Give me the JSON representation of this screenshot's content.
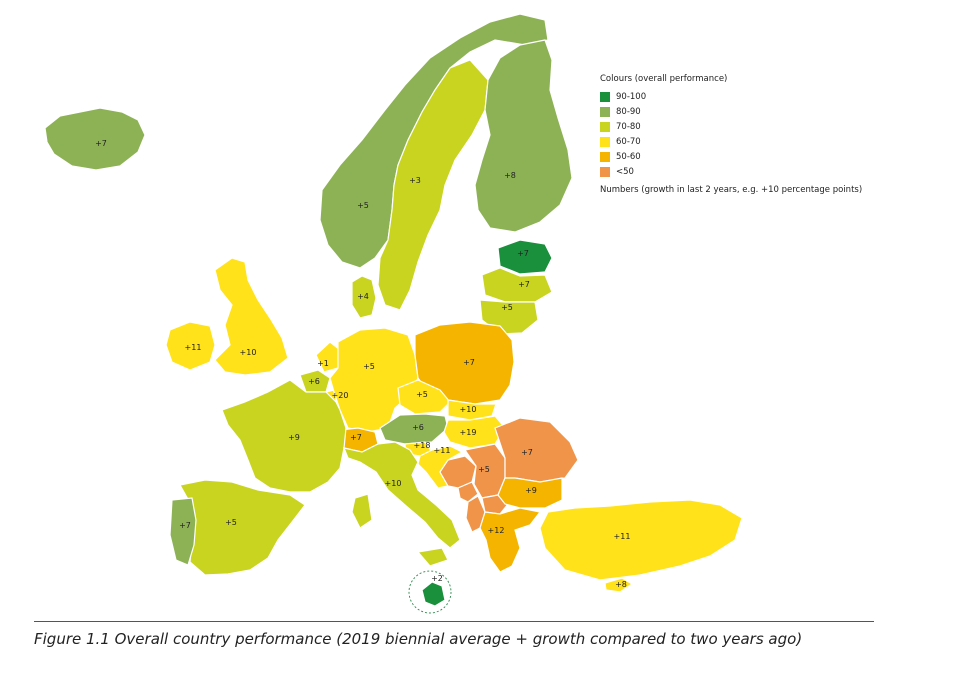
{
  "legend": {
    "title": "Colours (overall performance)",
    "items": [
      {
        "label": "90-100",
        "color": "#1a8f3c"
      },
      {
        "label": "80-90",
        "color": "#8db255"
      },
      {
        "label": "70-80",
        "color": "#c9d420"
      },
      {
        "label": "60-70",
        "color": "#ffe21a"
      },
      {
        "label": "50-60",
        "color": "#f4b400"
      },
      {
        "label": "<50",
        "color": "#f0944a"
      }
    ],
    "note": "Numbers (growth in last 2 years, e.g. +10 percentage points)"
  },
  "countries": [
    {
      "id": "iceland",
      "band": "80-90",
      "growth": "+7"
    },
    {
      "id": "norway",
      "band": "80-90",
      "growth": "+5"
    },
    {
      "id": "sweden",
      "band": "70-80",
      "growth": "+3"
    },
    {
      "id": "finland",
      "band": "80-90",
      "growth": "+8"
    },
    {
      "id": "estonia",
      "band": "90-100",
      "growth": "+7"
    },
    {
      "id": "latvia",
      "band": "70-80",
      "growth": "+7"
    },
    {
      "id": "lithuania",
      "band": "70-80",
      "growth": "+5"
    },
    {
      "id": "denmark",
      "band": "70-80",
      "growth": "+4"
    },
    {
      "id": "ireland",
      "band": "60-70",
      "growth": "+11"
    },
    {
      "id": "uk",
      "band": "60-70",
      "growth": "+10"
    },
    {
      "id": "netherlands",
      "band": "60-70",
      "growth": "+1"
    },
    {
      "id": "belgium",
      "band": "70-80",
      "growth": "+6"
    },
    {
      "id": "luxembourg",
      "band": "60-70",
      "growth": "+20"
    },
    {
      "id": "germany",
      "band": "60-70",
      "growth": "+5"
    },
    {
      "id": "poland",
      "band": "50-60",
      "growth": "+7"
    },
    {
      "id": "czechia",
      "band": "60-70",
      "growth": "+5"
    },
    {
      "id": "slovakia",
      "band": "60-70",
      "growth": "+10"
    },
    {
      "id": "hungary",
      "band": "60-70",
      "growth": "+19"
    },
    {
      "id": "austria",
      "band": "80-90",
      "growth": "+6"
    },
    {
      "id": "switzerland",
      "band": "50-60",
      "growth": "+7"
    },
    {
      "id": "france",
      "band": "70-80",
      "growth": "+9"
    },
    {
      "id": "slovenia",
      "band": "60-70",
      "growth": "+18"
    },
    {
      "id": "croatia",
      "band": "60-70",
      "growth": "+11"
    },
    {
      "id": "romania",
      "band": "<50",
      "growth": "+7"
    },
    {
      "id": "serbia",
      "band": "<50",
      "growth": "+5"
    },
    {
      "id": "bih",
      "band": "<50",
      "growth": ""
    },
    {
      "id": "montenegro",
      "band": "<50",
      "growth": ""
    },
    {
      "id": "macedonia",
      "band": "<50",
      "growth": ""
    },
    {
      "id": "albania",
      "band": "<50",
      "growth": ""
    },
    {
      "id": "bulgaria",
      "band": "50-60",
      "growth": "+9"
    },
    {
      "id": "greece",
      "band": "50-60",
      "growth": "+12"
    },
    {
      "id": "turkey",
      "band": "60-70",
      "growth": "+11"
    },
    {
      "id": "cyprus",
      "band": "60-70",
      "growth": "+8"
    },
    {
      "id": "italy",
      "band": "70-80",
      "growth": "+10"
    },
    {
      "id": "malta",
      "band": "90-100",
      "growth": "+2"
    },
    {
      "id": "spain",
      "band": "70-80",
      "growth": "+5"
    },
    {
      "id": "portugal",
      "band": "80-90",
      "growth": "+7"
    }
  ],
  "caption": "Figure 1.1 Overall country performance (2019 biennial average + growth compared to two years ago)"
}
